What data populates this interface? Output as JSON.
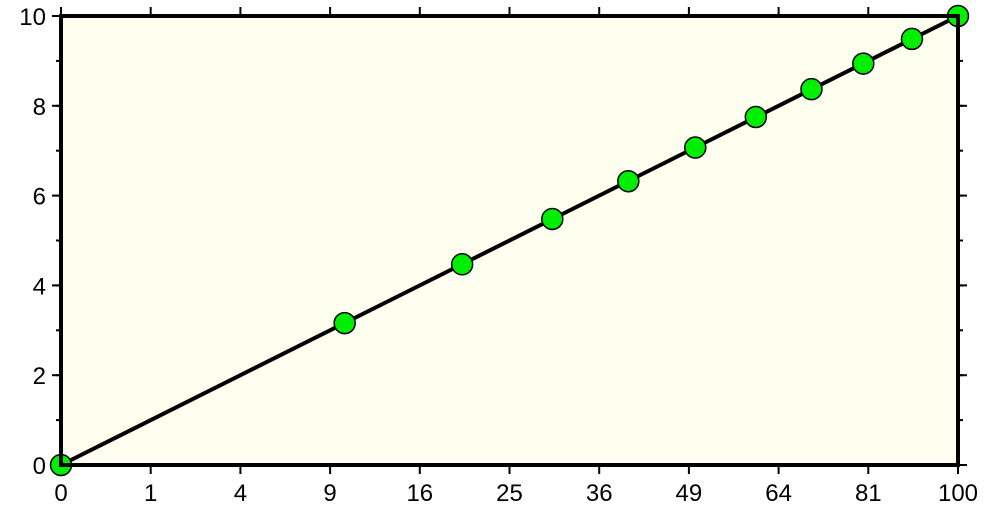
{
  "chart_data": {
    "type": "scatter",
    "title": "",
    "xlabel": "",
    "ylabel": "",
    "x_scale": "sqrt",
    "xlim": [
      0,
      100
    ],
    "ylim": [
      0,
      10
    ],
    "x_ticks": [
      0,
      1,
      4,
      9,
      16,
      25,
      36,
      49,
      64,
      81,
      100
    ],
    "y_ticks": [
      0,
      2,
      4,
      6,
      8,
      10
    ],
    "y_minor_step": 1,
    "grid": false,
    "line": {
      "x": [
        0,
        100
      ],
      "y": [
        0,
        10
      ],
      "color": "#000000"
    },
    "points": {
      "x": [
        0,
        10,
        20,
        30,
        40,
        50,
        60,
        70,
        80,
        90,
        100
      ],
      "y": [
        0,
        3.16,
        4.47,
        5.48,
        6.32,
        7.07,
        7.75,
        8.37,
        8.94,
        9.49,
        10
      ],
      "fill": "#00ee00",
      "stroke": "#000000"
    },
    "background": "#fffff0"
  }
}
